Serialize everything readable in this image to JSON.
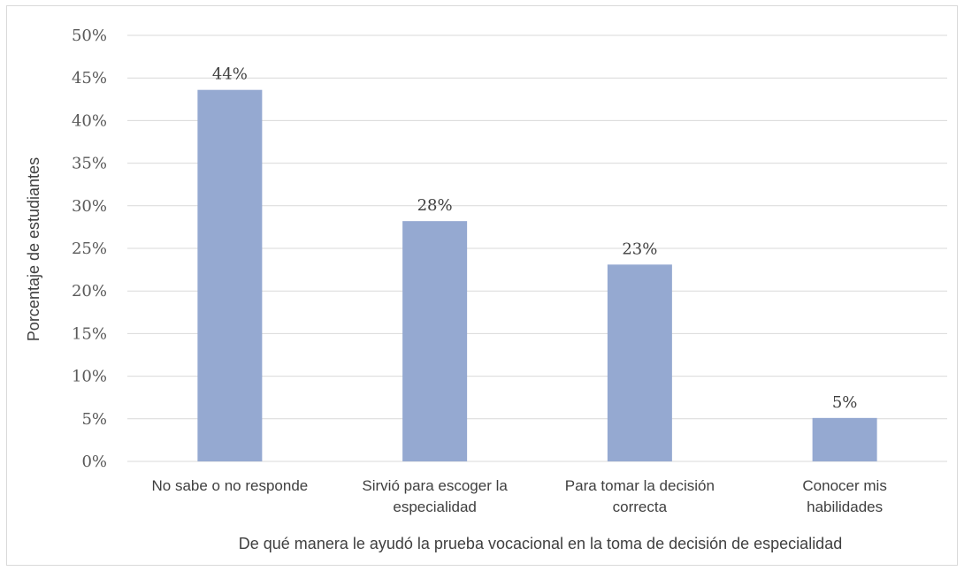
{
  "chart_data": {
    "type": "bar",
    "title": "",
    "xlabel": "De qué manera le ayudó la prueba vocacional en la toma de decisión de especialidad",
    "ylabel": "Porcentaje de estudiantes",
    "categories": [
      [
        "No sabe o no responde"
      ],
      [
        "Sirvió para escoger la",
        "especialidad"
      ],
      [
        "Para tomar la decisión",
        "correcta"
      ],
      [
        "Conocer mis",
        "habilidades"
      ]
    ],
    "values": [
      43.6,
      28.2,
      23.1,
      5.1
    ],
    "data_labels": [
      "44%",
      "28%",
      "23%",
      "5%"
    ],
    "ylim": [
      0,
      50
    ],
    "yticks": [
      0,
      5,
      10,
      15,
      20,
      25,
      30,
      35,
      40,
      45,
      50
    ],
    "ytick_labels": [
      "0%",
      "5%",
      "10%",
      "15%",
      "20%",
      "25%",
      "30%",
      "35%",
      "40%",
      "45%",
      "50%"
    ],
    "grid": true,
    "legend": "none",
    "bar_color": "#95a9d1"
  }
}
